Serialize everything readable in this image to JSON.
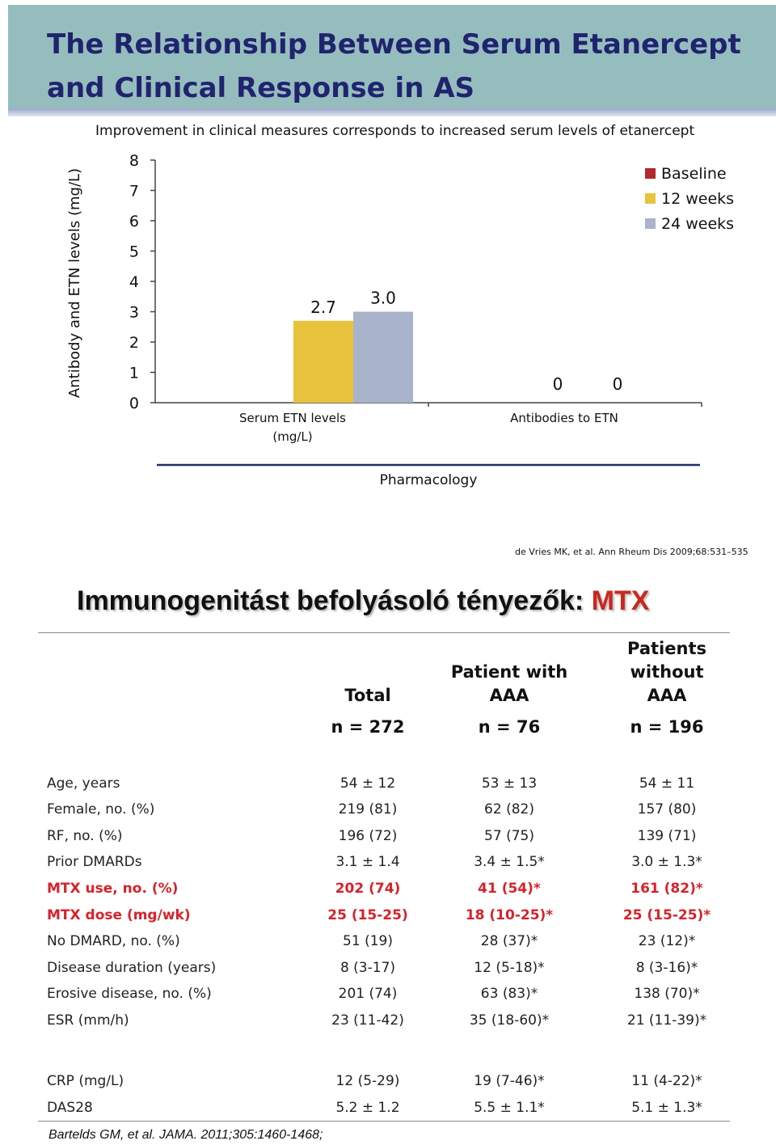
{
  "slide": {
    "title_line1": "The Relationship Between Serum Etanercept",
    "title_line2": "and Clinical Response in AS",
    "chart_subtitle": "Improvement in clinical measures corresponds to increased serum levels of etanercept",
    "citation": "de Vries MK, et al. Ann Rheum Dis 2009;68:531–535"
  },
  "chart_data": {
    "type": "bar",
    "title": "",
    "ylabel": "Antibody and ETN levels (mg/L)",
    "xlabel": "Pharmacology",
    "ylim": [
      0,
      8
    ],
    "yticks": [
      "0",
      "1",
      "2",
      "3",
      "4",
      "5",
      "6",
      "7",
      "8"
    ],
    "categories": [
      {
        "line1": "Serum ETN levels",
        "line2": "(mg/L)"
      },
      {
        "line1": "Antibodies to ETN",
        "line2": ""
      }
    ],
    "series": [
      {
        "name": "Baseline",
        "color": "#b5282e",
        "values": [
          0,
          0
        ],
        "labels": [
          "",
          ""
        ]
      },
      {
        "name": "12 weeks",
        "color": "#e8c33b",
        "values": [
          2.7,
          0
        ],
        "labels": [
          "2.7",
          "0"
        ]
      },
      {
        "name": "24 weeks",
        "color": "#a9b3cc",
        "values": [
          3.0,
          0
        ],
        "labels": [
          "3.0",
          "0"
        ]
      }
    ],
    "legend_position": "top-right",
    "grid": false
  },
  "section": {
    "title_main": "Immunogenitást befolyásoló tényezők: ",
    "title_highlight": "MTX"
  },
  "table": {
    "headers": [
      {
        "lines": [
          "Total"
        ],
        "n": "n = 272"
      },
      {
        "lines": [
          "Patient with",
          "AAA"
        ],
        "n": "n = 76"
      },
      {
        "lines": [
          "Patients",
          "without",
          "AAA"
        ],
        "n": "n = 196"
      }
    ],
    "rows": [
      {
        "label": "Age, years",
        "total": "54 ± 12",
        "with_aaa": "53 ± 13",
        "without_aaa": "54 ± 11",
        "highlight": false
      },
      {
        "label": "Female, no. (%)",
        "total": "219 (81)",
        "with_aaa": "62 (82)",
        "without_aaa": "157 (80)",
        "highlight": false
      },
      {
        "label": "RF, no. (%)",
        "total": "196 (72)",
        "with_aaa": "57 (75)",
        "without_aaa": "139 (71)",
        "highlight": false
      },
      {
        "label": "Prior DMARDs",
        "total": "3.1 ± 1.4",
        "with_aaa": "3.4 ± 1.5*",
        "without_aaa": "3.0 ± 1.3*",
        "highlight": false
      },
      {
        "label": "MTX  use, no. (%)",
        "total": "202 (74)",
        "with_aaa": "41 (54)*",
        "without_aaa": "161 (82)*",
        "highlight": true
      },
      {
        "label": "MTX dose (mg/wk)",
        "total": "25 (15-25)",
        "with_aaa": "18 (10-25)*",
        "without_aaa": "25 (15-25)*",
        "highlight": true
      },
      {
        "label": "No DMARD, no. (%)",
        "total": "51 (19)",
        "with_aaa": "28 (37)*",
        "without_aaa": "23 (12)*",
        "highlight": false
      },
      {
        "label": "Disease duration (years)",
        "total": "8 (3-17)",
        "with_aaa": "12 (5-18)*",
        "without_aaa": "8 (3-16)*",
        "highlight": false
      },
      {
        "label": "Erosive disease, no. (%)",
        "total": "201 (74)",
        "with_aaa": "63 (83)*",
        "without_aaa": "138 (70)*",
        "highlight": false
      },
      {
        "label": "ESR (mm/h)",
        "total": "23 (11-42)",
        "with_aaa": "35 (18-60)*",
        "without_aaa": "21 (11-39)*",
        "highlight": false
      },
      {
        "label": "CRP (mg/L)",
        "total": "12 (5-29)",
        "with_aaa": "19 (7-46)*",
        "without_aaa": "11 (4-22)*",
        "highlight": false
      },
      {
        "label": "DAS28",
        "total": "5.2 ± 1.2",
        "with_aaa": "5.5 ± 1.1*",
        "without_aaa": "5.1 ± 1.3*",
        "highlight": false
      }
    ]
  },
  "footer": {
    "citation": "Bartelds GM, et al. JAMA. 2011;305:1460-1468;"
  }
}
